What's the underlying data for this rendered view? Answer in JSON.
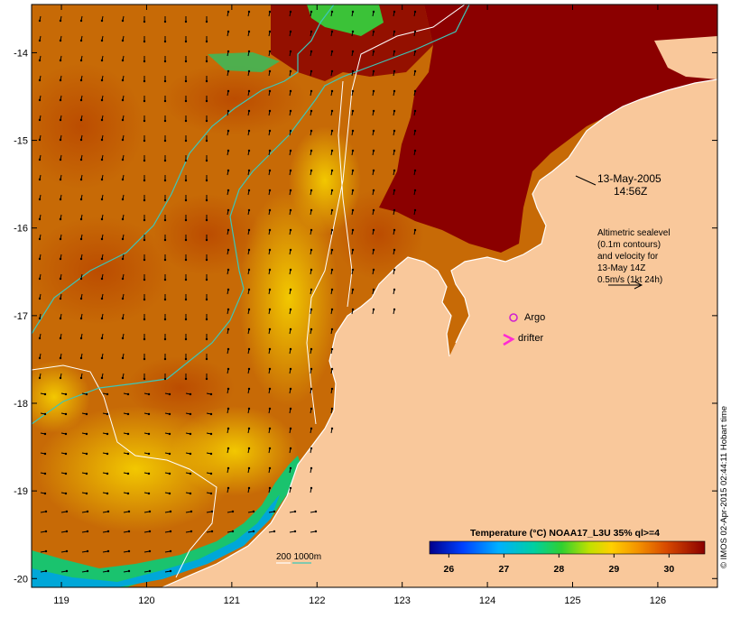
{
  "map": {
    "x_ticks": [
      "119",
      "120",
      "121",
      "122",
      "123",
      "124",
      "125",
      "126"
    ],
    "y_ticks": [
      "-14",
      "-15",
      "-16",
      "-17",
      "-18",
      "-19",
      "-20"
    ],
    "lon_range": [
      118.65,
      126.7
    ],
    "lat_range": [
      -13.45,
      -20.1
    ]
  },
  "annotations": {
    "date": "13-May-2005",
    "time": "14:56Z",
    "altimetry": [
      "Altimetric sealevel",
      "(0.1m contours)",
      "and velocity for",
      "13-May 14Z",
      "0.5m/s (1kt 24h)"
    ],
    "argo_label": "Argo",
    "drifter_label": "drifter",
    "depth_label": "200  1000m"
  },
  "colorbar": {
    "title": "Temperature (°C) NOAA17_L3U 35% ql>=4",
    "ticks": [
      "26",
      "27",
      "28",
      "29",
      "30"
    ],
    "range": [
      25.65,
      30.65
    ]
  },
  "credit": "© IMOS 02-Apr-2015 02:44:11 Hobart time",
  "colors": {
    "land": "#f9c89b",
    "warm_sst": "#8b0000",
    "mid_sst": "#c76a06",
    "cool_sst": "#f2c100",
    "coast_cold": "#1ac36e",
    "contour_200m": "#ffffff",
    "contour_1000m": "#3cc7b9",
    "argo_marker": "#d020d0",
    "drifter_marker": "#ff2ad4"
  }
}
